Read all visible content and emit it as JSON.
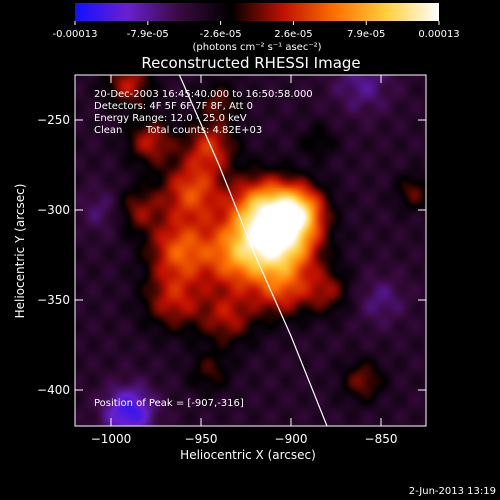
{
  "colorbar": {
    "tick_labels": [
      "-0.00013",
      "-7.9e-05",
      "-2.6e-05",
      "2.6e-05",
      "7.9e-05",
      "0.00013"
    ],
    "unit_label": "(photons cm⁻² s⁻¹ asec⁻²)",
    "colors": [
      "#1010ff",
      "#6a20d0",
      "#3a0a40",
      "#000000",
      "#c01000",
      "#ff7000",
      "#ffd040",
      "#ffffff"
    ]
  },
  "chart_data": {
    "type": "heatmap",
    "title": "Reconstructed RHESSI Image",
    "xlabel": "Heliocentric X (arcsec)",
    "ylabel": "Heliocentric Y (arcsec)",
    "xlim": [
      -1020,
      -825
    ],
    "ylim": [
      -420,
      -225
    ],
    "xticks": [
      -1000,
      -950,
      -900,
      -850
    ],
    "yticks": [
      -250,
      -300,
      -350,
      -400
    ],
    "annotations": {
      "time_range": "20-Dec-2003 16:45:40.000 to 16:50:58.000",
      "detectors": "Detectors: 4F 5F 6F 7F 8F, Att 0",
      "energy_range": "Energy Range: 12.0 - 25.0 keV",
      "clean": "Clean",
      "total_counts": "Total counts: 4.82E+03",
      "peak": "Position of Peak = [-907,-316]"
    },
    "peak": [
      -907,
      -316
    ],
    "limb_curve": [
      [
        -962,
        -225
      ],
      [
        -940,
        -275
      ],
      [
        -920,
        -325
      ],
      [
        -900,
        -370
      ],
      [
        -880,
        -420
      ]
    ],
    "sources": [
      {
        "x": -905,
        "y": -318,
        "w": 1.0,
        "r": 14
      },
      {
        "x": -915,
        "y": -300,
        "w": 0.85,
        "r": 13
      },
      {
        "x": -895,
        "y": -300,
        "w": 0.7,
        "r": 10
      },
      {
        "x": -930,
        "y": -325,
        "w": 0.7,
        "r": 14
      },
      {
        "x": -955,
        "y": -290,
        "w": 0.6,
        "r": 12
      },
      {
        "x": -962,
        "y": -322,
        "w": 0.6,
        "r": 12
      },
      {
        "x": -945,
        "y": -265,
        "w": 0.5,
        "r": 10
      },
      {
        "x": -978,
        "y": -262,
        "w": 0.45,
        "r": 9
      },
      {
        "x": -985,
        "y": -300,
        "w": 0.35,
        "r": 9
      },
      {
        "x": -965,
        "y": -350,
        "w": 0.45,
        "r": 12
      },
      {
        "x": -935,
        "y": -360,
        "w": 0.4,
        "r": 11
      },
      {
        "x": -905,
        "y": -345,
        "w": 0.45,
        "r": 11
      },
      {
        "x": -880,
        "y": -345,
        "w": 0.35,
        "r": 9
      },
      {
        "x": -945,
        "y": -390,
        "w": 0.25,
        "r": 8
      },
      {
        "x": -990,
        "y": -230,
        "w": 0.45,
        "r": 9
      },
      {
        "x": -940,
        "y": -240,
        "w": 0.3,
        "r": 8
      },
      {
        "x": -860,
        "y": -395,
        "w": 0.35,
        "r": 8
      },
      {
        "x": -832,
        "y": -290,
        "w": 0.3,
        "r": 7
      },
      {
        "x": -885,
        "y": -262,
        "w": 0.2,
        "r": 7
      },
      {
        "x": -990,
        "y": -412,
        "w": -0.55,
        "r": 10
      },
      {
        "x": -1005,
        "y": -300,
        "w": -0.2,
        "r": 9
      },
      {
        "x": -860,
        "y": -230,
        "w": -0.25,
        "r": 12
      },
      {
        "x": -850,
        "y": -350,
        "w": -0.22,
        "r": 10
      }
    ]
  },
  "footer": {
    "date_stamp": "2-Jun-2013 13:19"
  }
}
